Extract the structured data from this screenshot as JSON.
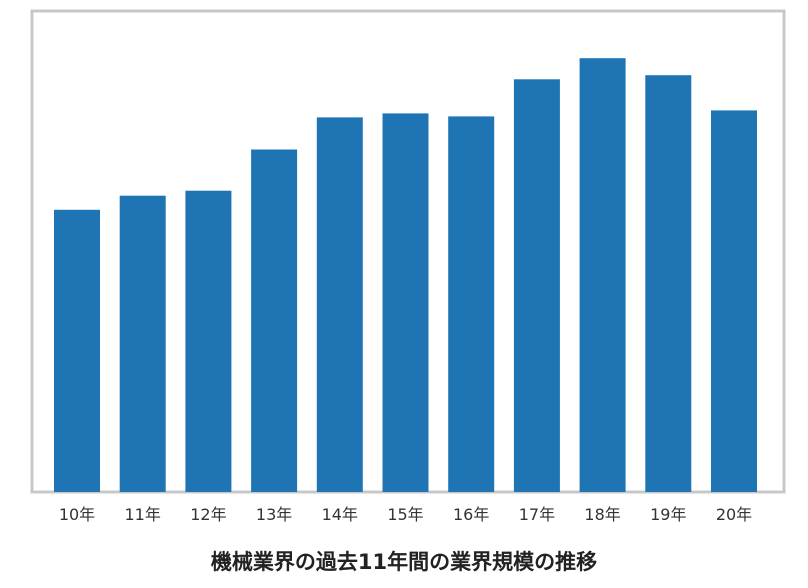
{
  "chart_data": {
    "type": "bar",
    "categories": [
      "10年",
      "11年",
      "12年",
      "13年",
      "14年",
      "15年",
      "16年",
      "17年",
      "18年",
      "19年",
      "20年"
    ],
    "values": [
      281,
      295,
      300,
      341,
      373,
      377,
      374,
      411,
      432,
      415,
      380
    ],
    "ylim": [
      0,
      470
    ],
    "grid": false,
    "legend": "none",
    "bar_color": "#1f74b4",
    "border_color": "#c8c8c8"
  },
  "caption": "機械業界の過去11年間の業界規模の推移"
}
